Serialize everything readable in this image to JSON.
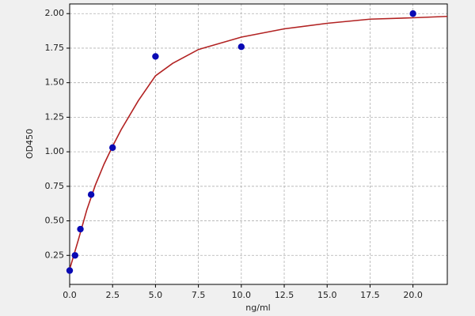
{
  "chart_data": {
    "type": "scatter",
    "x_label": "ng/ml",
    "y_label": "OD450",
    "xlim": [
      0,
      22
    ],
    "ylim": [
      0.04,
      2.07
    ],
    "xticks": [
      {
        "value": 0,
        "label": "0.0"
      },
      {
        "value": 2.5,
        "label": "2.5"
      },
      {
        "value": 5,
        "label": "5.0"
      },
      {
        "value": 7.5,
        "label": "7.5"
      },
      {
        "value": 10,
        "label": "10.0"
      },
      {
        "value": 12.5,
        "label": "12.5"
      },
      {
        "value": 15,
        "label": "15.0"
      },
      {
        "value": 17.5,
        "label": "17.5"
      },
      {
        "value": 20,
        "label": "20.0"
      }
    ],
    "yticks": [
      0.25,
      {
        "value": 0.5,
        "label": "0.50"
      },
      0.75,
      {
        "value": 1,
        "label": "1.00"
      },
      1.25,
      {
        "value": 1.5,
        "label": "1.50"
      },
      1.75,
      {
        "value": 2,
        "label": "2.00"
      }
    ],
    "grid": true,
    "series": [
      {
        "kind": "points",
        "color": "#0a0ab4",
        "x": [
          0,
          0.3125,
          0.625,
          1.25,
          2.5,
          5,
          10,
          20
        ],
        "values": [
          0.14,
          0.25,
          0.44,
          0.69,
          1.03,
          1.69,
          1.76,
          2.0
        ]
      },
      {
        "kind": "curve",
        "color": "#b22222",
        "x": [
          0,
          0.5,
          1,
          1.5,
          2,
          2.5,
          3,
          4,
          5,
          6,
          7.5,
          10,
          12.5,
          15,
          17.5,
          20,
          22
        ],
        "values": [
          0.15,
          0.36,
          0.58,
          0.76,
          0.91,
          1.04,
          1.16,
          1.37,
          1.55,
          1.64,
          1.74,
          1.83,
          1.89,
          1.93,
          1.96,
          1.97,
          1.98
        ]
      }
    ]
  }
}
